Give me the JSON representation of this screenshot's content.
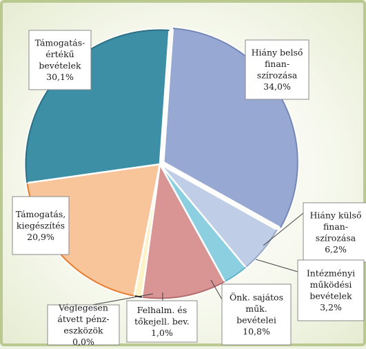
{
  "chart_data": {
    "type": "pie",
    "slices": [
      {
        "label": [
          "Hiány belső",
          "finan-",
          "szírozása"
        ],
        "value_label": "34,0%",
        "value": 34.0,
        "color": "#97a9d2",
        "edge": "#7487b6"
      },
      {
        "label": [
          "Hiány külső",
          "finan-",
          "szírozása"
        ],
        "value_label": "6,2%",
        "value": 6.2,
        "color": "#bfcde6",
        "edge": "#98a9c8"
      },
      {
        "label": [
          "Intézményi",
          "működési",
          "bevételek"
        ],
        "value_label": "3,2%",
        "value": 3.2,
        "color": "#8ccfe0",
        "edge": "#5fb3c9"
      },
      {
        "label": [
          "Önk. sajátos",
          "műk.",
          "bevételei"
        ],
        "value_label": "10,8%",
        "value": 10.8,
        "color": "#d99494",
        "edge": "#b56c6c"
      },
      {
        "label": [
          "Felhalm. és",
          "tőkejell. bev."
        ],
        "value_label": "1,0%",
        "value": 1.0,
        "color": "#fdf3c8",
        "edge": "#202020"
      },
      {
        "label": [
          "Véglegesen",
          "átvett pénz-",
          "eszközök"
        ],
        "value_label": "0,0%",
        "value": 0.0,
        "color": "#f6c9a0",
        "edge": "#e07a2e"
      },
      {
        "label": [
          "Támogatás,",
          "kiegészítés"
        ],
        "value_label": "20,9%",
        "value": 20.9,
        "color": "#f8c49a",
        "edge": "#e77c2c"
      },
      {
        "label": [
          "Támogatás-",
          "értékű",
          "bevételek"
        ],
        "value_label": "30,1%",
        "value": 30.1,
        "color": "#3d8fa6",
        "edge": "#2d6f82"
      }
    ]
  }
}
